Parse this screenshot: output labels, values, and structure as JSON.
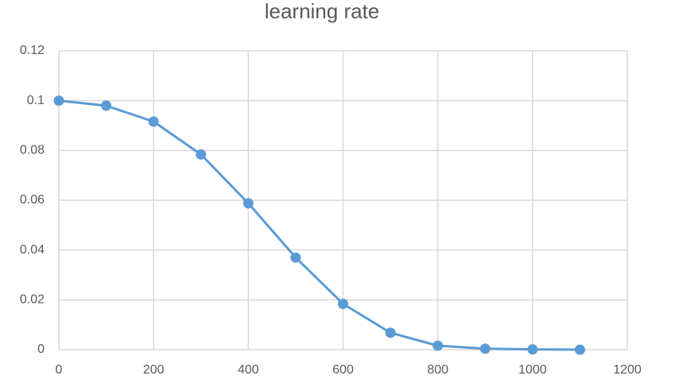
{
  "chart_data": {
    "type": "scatter-line",
    "title": "learning rate",
    "x": [
      0,
      100,
      200,
      300,
      400,
      500,
      600,
      700,
      800,
      900,
      1000,
      1100
    ],
    "series": [
      {
        "color": "#5b9bd5",
        "values": [
          0.1,
          0.098,
          0.0916,
          0.0784,
          0.0588,
          0.037,
          0.0184,
          0.0068,
          0.0016,
          0.0004,
          0.0001,
          0.0
        ]
      }
    ],
    "xlim": [
      0,
      1200
    ],
    "xticks": [
      0,
      200,
      400,
      600,
      800,
      1000,
      1200
    ],
    "ylim": [
      0,
      0.12
    ],
    "yticks": [
      0,
      0.02,
      0.04,
      0.06,
      0.08,
      0.1,
      0.12
    ],
    "grid": true
  }
}
